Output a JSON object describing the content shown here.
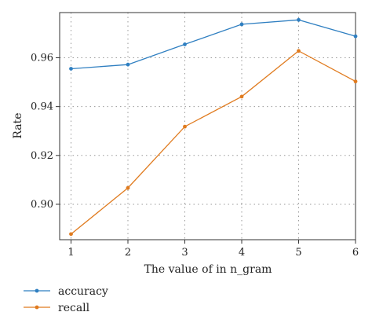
{
  "chart_data": {
    "type": "line",
    "title": "",
    "xlabel": "The value of in n_gram",
    "ylabel": "Rate",
    "x": [
      1,
      2,
      3,
      4,
      5,
      6
    ],
    "xticks": [
      "1",
      "2",
      "3",
      "4",
      "5",
      "6"
    ],
    "xlim": [
      0.8,
      6.0
    ],
    "ylim": [
      0.8855,
      0.9785
    ],
    "yticks": [
      "0.90",
      "0.92",
      "0.94",
      "0.96"
    ],
    "ytick_values": [
      0.9,
      0.92,
      0.94,
      0.96
    ],
    "grid": true,
    "legend_position": "bottom-left",
    "series": [
      {
        "name": "accuracy",
        "color": "#2f7fc1",
        "values": [
          0.9555,
          0.9572,
          0.9655,
          0.9737,
          0.9755,
          0.9688
        ]
      },
      {
        "name": "recall",
        "color": "#e07b1f",
        "values": [
          0.8878,
          0.9067,
          0.9318,
          0.9441,
          0.9628,
          0.9503
        ]
      }
    ]
  }
}
